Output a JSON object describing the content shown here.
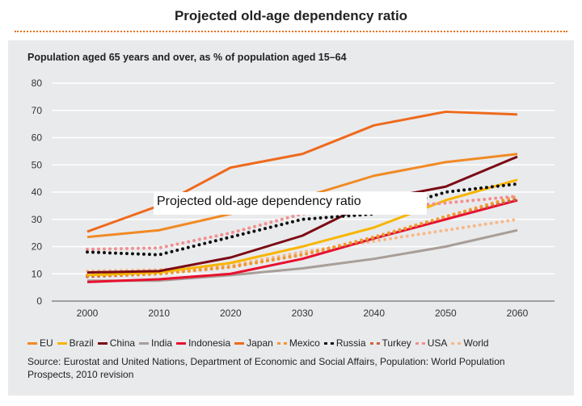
{
  "chart_data": {
    "type": "line",
    "title": "Projected old-age dependency ratio",
    "subtitle": "Population aged 65 years and over, as % of population aged 15–64",
    "overlay_label": "Projected old-age dependency ratio",
    "xlabel": "",
    "ylabel": "",
    "x": [
      2000,
      2010,
      2020,
      2030,
      2040,
      2050,
      2060
    ],
    "ylim": [
      0,
      80
    ],
    "yticks": [
      0,
      10,
      20,
      30,
      40,
      50,
      60,
      70,
      80
    ],
    "grid": true,
    "legend_position": "bottom",
    "series": [
      {
        "name": "EU",
        "style": "solid",
        "color": "#f08a24",
        "values": [
          23.5,
          26,
          32,
          38,
          46,
          51,
          54
        ]
      },
      {
        "name": "Brazil",
        "style": "solid",
        "color": "#f7b500",
        "values": [
          9.5,
          10.5,
          14,
          20,
          27,
          37,
          44.5
        ]
      },
      {
        "name": "China",
        "style": "solid",
        "color": "#7a0a14",
        "values": [
          10.5,
          11,
          16,
          24,
          37,
          42,
          53
        ]
      },
      {
        "name": "India",
        "style": "solid",
        "color": "#a89e98",
        "values": [
          7.5,
          7.5,
          9.5,
          12,
          15.5,
          20,
          26
        ]
      },
      {
        "name": "Indonesia",
        "style": "solid",
        "color": "#e8102e",
        "values": [
          7,
          8,
          10,
          15.5,
          23,
          30,
          37
        ]
      },
      {
        "name": "Japan",
        "style": "solid",
        "color": "#ee6a1c",
        "values": [
          25.5,
          35,
          49,
          54,
          64.5,
          69.5,
          68.5
        ]
      },
      {
        "name": "Mexico",
        "style": "dotted",
        "color": "#f29a2e",
        "values": [
          9.5,
          10,
          12.5,
          17,
          23.5,
          31,
          38.5
        ]
      },
      {
        "name": "Russia",
        "style": "dotted",
        "color": "#111111",
        "values": [
          18,
          17,
          23.5,
          30,
          32,
          40,
          43
        ]
      },
      {
        "name": "Turkey",
        "style": "dotted",
        "color": "#c8653e",
        "values": [
          9,
          10,
          12.5,
          17,
          23,
          31,
          37.5
        ]
      },
      {
        "name": "USA",
        "style": "dotted",
        "color": "#f09090",
        "values": [
          19,
          19.5,
          25,
          32,
          34,
          36,
          38.5
        ]
      },
      {
        "name": "World",
        "style": "dotted",
        "color": "#f7b98a",
        "values": [
          11,
          11.5,
          13,
          18,
          22,
          26,
          30
        ]
      }
    ]
  },
  "source": "Source: Eurostat and United Nations, Department of Economic and Social Affairs, Population: World Population Prospects, 2010 revision"
}
